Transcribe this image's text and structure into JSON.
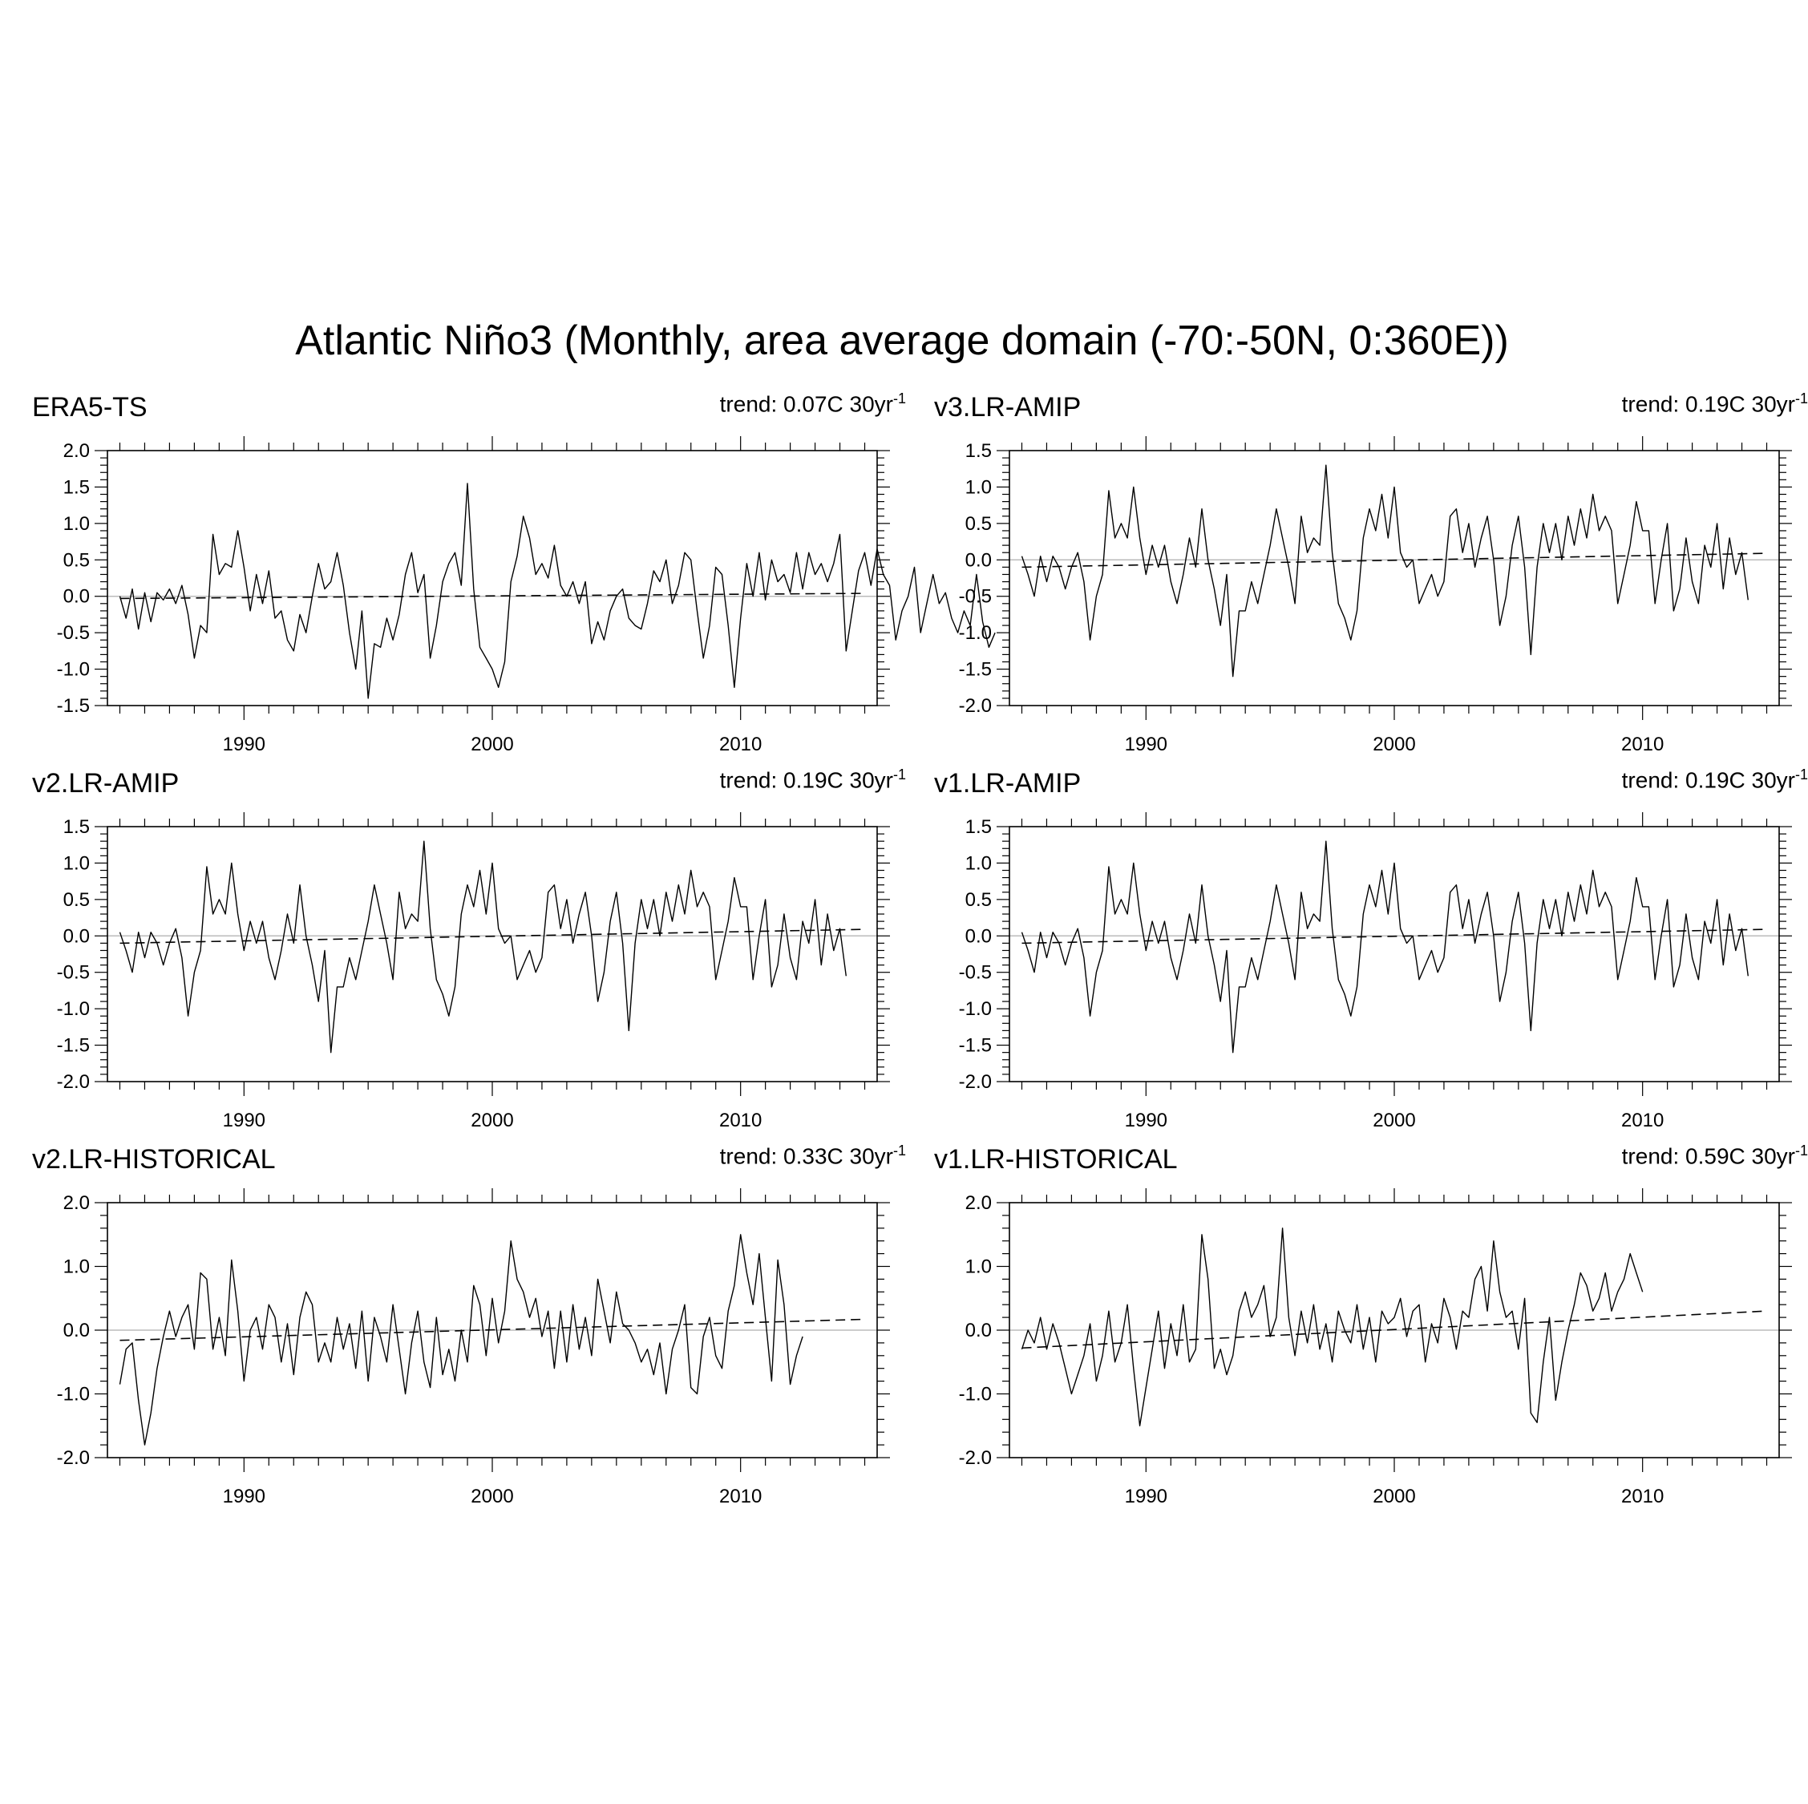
{
  "title": "Atlantic Niño3 (Monthly, area average domain (-70:-50N, 0:360E))",
  "colors": {
    "series": "#000000",
    "trend": "#000000",
    "zero": "#bbbbbb"
  },
  "chart_data": [
    {
      "type": "line",
      "title": "ERA5-TS",
      "trend_label": "trend: 0.07C 30yr",
      "trend_exp": "-1",
      "xlim": [
        1984.5,
        2015.5
      ],
      "ylim": [
        -1.5,
        2.0
      ],
      "ytick_values": [
        2.0,
        1.5,
        1.0,
        0.5,
        0.0,
        -0.5,
        -1.0,
        -1.5
      ],
      "ytick_labels": [
        "2.0",
        "1.5",
        "1.0",
        "0.5",
        "0.0",
        "-0.5",
        "-1.0",
        "-1.5"
      ],
      "xtick_values": [
        1990,
        2000,
        2010
      ],
      "xtick_labels": [
        "1990",
        "2000",
        "2010"
      ],
      "trend_line": [
        [
          1985.0,
          -0.03
        ],
        [
          2015.0,
          0.04
        ]
      ],
      "series": [
        {
          "name": "ERA5-TS",
          "start": 1985.0,
          "step": 0.25,
          "values": [
            0.0,
            -0.3,
            0.1,
            -0.45,
            0.05,
            -0.35,
            0.05,
            -0.05,
            0.1,
            -0.1,
            0.15,
            -0.25,
            -0.85,
            -0.4,
            -0.5,
            0.85,
            0.3,
            0.45,
            0.4,
            0.9,
            0.4,
            -0.2,
            0.3,
            -0.1,
            0.35,
            -0.3,
            -0.2,
            -0.6,
            -0.75,
            -0.25,
            -0.5,
            0.0,
            0.45,
            0.1,
            0.2,
            0.6,
            0.15,
            -0.5,
            -1.0,
            -0.2,
            -1.4,
            -0.65,
            -0.7,
            -0.3,
            -0.6,
            -0.25,
            0.3,
            0.6,
            0.05,
            0.3,
            -0.85,
            -0.4,
            0.2,
            0.45,
            0.6,
            0.15,
            1.55,
            0.1,
            -0.7,
            -0.85,
            -1.0,
            -1.25,
            -0.9,
            0.2,
            0.55,
            1.1,
            0.8,
            0.3,
            0.45,
            0.25,
            0.7,
            0.15,
            0.0,
            0.2,
            -0.1,
            0.2,
            -0.65,
            -0.35,
            -0.6,
            -0.2,
            0.0,
            0.1,
            -0.3,
            -0.4,
            -0.45,
            -0.1,
            0.35,
            0.2,
            0.5,
            -0.1,
            0.15,
            0.6,
            0.5,
            -0.2,
            -0.85,
            -0.4,
            0.4,
            0.3,
            -0.4,
            -1.25,
            -0.3,
            0.45,
            0.0,
            0.6,
            -0.05,
            0.5,
            0.2,
            0.3,
            0.05,
            0.6,
            0.1,
            0.6,
            0.3,
            0.45,
            0.2,
            0.45,
            0.85,
            -0.75,
            -0.2,
            0.35,
            0.6,
            0.15,
            0.65,
            0.3,
            0.15,
            -0.6,
            -0.2,
            0.0,
            0.4,
            -0.5,
            -0.1,
            0.3,
            -0.1,
            0.05,
            -0.3,
            -0.5,
            -0.2,
            -0.4,
            0.3,
            -0.35,
            -0.7,
            -0.5
          ]
        }
      ]
    },
    {
      "type": "line",
      "title": "v3.LR-AMIP",
      "trend_label": "trend: 0.19C 30yr",
      "trend_exp": "-1",
      "xlim": [
        1984.5,
        2015.5
      ],
      "ylim": [
        -2.0,
        1.5
      ],
      "ytick_values": [
        1.5,
        1.0,
        0.5,
        0.0,
        -0.5,
        -1.0,
        -1.5,
        -2.0
      ],
      "ytick_labels": [
        "1.5",
        "1.0",
        "0.5",
        "0.0",
        "-0.5",
        "-1.0",
        "-1.5",
        "-2.0"
      ],
      "xtick_values": [
        1990,
        2000,
        2010
      ],
      "xtick_labels": [
        "1990",
        "2000",
        "2010"
      ],
      "trend_line": [
        [
          1985.0,
          -0.1
        ],
        [
          2015.0,
          0.09
        ]
      ],
      "series": [
        {
          "name": "v3.LR-AMIP",
          "start": 1985.0,
          "step": 0.25,
          "values": [
            0.05,
            -0.2,
            -0.5,
            0.05,
            -0.3,
            0.05,
            -0.1,
            -0.4,
            -0.1,
            0.1,
            -0.3,
            -1.1,
            -0.5,
            -0.2,
            0.95,
            0.3,
            0.5,
            0.3,
            1.0,
            0.3,
            -0.2,
            0.2,
            -0.1,
            0.2,
            -0.3,
            -0.6,
            -0.2,
            0.3,
            -0.1,
            0.7,
            0.0,
            -0.4,
            -0.9,
            -0.2,
            -1.6,
            -0.7,
            -0.7,
            -0.3,
            -0.6,
            -0.2,
            0.2,
            0.7,
            0.3,
            -0.1,
            -0.6,
            0.6,
            0.1,
            0.3,
            0.2,
            1.3,
            0.1,
            -0.6,
            -0.8,
            -1.1,
            -0.7,
            0.3,
            0.7,
            0.4,
            0.9,
            0.3,
            1.0,
            0.1,
            -0.1,
            0.0,
            -0.6,
            -0.4,
            -0.2,
            -0.5,
            -0.3,
            0.6,
            0.7,
            0.1,
            0.5,
            -0.1,
            0.3,
            0.6,
            0.0,
            -0.9,
            -0.5,
            0.2,
            0.6,
            -0.1,
            -1.3,
            -0.1,
            0.5,
            0.1,
            0.5,
            0.0,
            0.6,
            0.2,
            0.7,
            0.3,
            0.9,
            0.4,
            0.6,
            0.4,
            -0.6,
            -0.2,
            0.2,
            0.8,
            0.4,
            0.4,
            -0.6,
            0.0,
            0.5,
            -0.7,
            -0.4,
            0.3,
            -0.3,
            -0.6,
            0.2,
            -0.1,
            0.5,
            -0.4,
            0.3,
            -0.2,
            0.1,
            -0.55
          ]
        }
      ]
    },
    {
      "type": "line",
      "title": "v2.LR-AMIP",
      "trend_label": "trend: 0.19C 30yr",
      "trend_exp": "-1",
      "xlim": [
        1984.5,
        2015.5
      ],
      "ylim": [
        -2.0,
        1.5
      ],
      "ytick_values": [
        1.5,
        1.0,
        0.5,
        0.0,
        -0.5,
        -1.0,
        -1.5,
        -2.0
      ],
      "ytick_labels": [
        "1.5",
        "1.0",
        "0.5",
        "0.0",
        "-0.5",
        "-1.0",
        "-1.5",
        "-2.0"
      ],
      "xtick_values": [
        1990,
        2000,
        2010
      ],
      "xtick_labels": [
        "1990",
        "2000",
        "2010"
      ],
      "trend_line": [
        [
          1985.0,
          -0.1
        ],
        [
          2015.0,
          0.09
        ]
      ],
      "series": [
        {
          "name": "v2.LR-AMIP",
          "start": 1985.0,
          "step": 0.25,
          "values": [
            0.05,
            -0.2,
            -0.5,
            0.05,
            -0.3,
            0.05,
            -0.1,
            -0.4,
            -0.1,
            0.1,
            -0.3,
            -1.1,
            -0.5,
            -0.2,
            0.95,
            0.3,
            0.5,
            0.3,
            1.0,
            0.3,
            -0.2,
            0.2,
            -0.1,
            0.2,
            -0.3,
            -0.6,
            -0.2,
            0.3,
            -0.1,
            0.7,
            0.0,
            -0.4,
            -0.9,
            -0.2,
            -1.6,
            -0.7,
            -0.7,
            -0.3,
            -0.6,
            -0.2,
            0.2,
            0.7,
            0.3,
            -0.1,
            -0.6,
            0.6,
            0.1,
            0.3,
            0.2,
            1.3,
            0.1,
            -0.6,
            -0.8,
            -1.1,
            -0.7,
            0.3,
            0.7,
            0.4,
            0.9,
            0.3,
            1.0,
            0.1,
            -0.1,
            0.0,
            -0.6,
            -0.4,
            -0.2,
            -0.5,
            -0.3,
            0.6,
            0.7,
            0.1,
            0.5,
            -0.1,
            0.3,
            0.6,
            0.0,
            -0.9,
            -0.5,
            0.2,
            0.6,
            -0.1,
            -1.3,
            -0.1,
            0.5,
            0.1,
            0.5,
            0.0,
            0.6,
            0.2,
            0.7,
            0.3,
            0.9,
            0.4,
            0.6,
            0.4,
            -0.6,
            -0.2,
            0.2,
            0.8,
            0.4,
            0.4,
            -0.6,
            0.0,
            0.5,
            -0.7,
            -0.4,
            0.3,
            -0.3,
            -0.6,
            0.2,
            -0.1,
            0.5,
            -0.4,
            0.3,
            -0.2,
            0.1,
            -0.55
          ]
        }
      ]
    },
    {
      "type": "line",
      "title": "v1.LR-AMIP",
      "trend_label": "trend: 0.19C 30yr",
      "trend_exp": "-1",
      "xlim": [
        1984.5,
        2015.5
      ],
      "ylim": [
        -2.0,
        1.5
      ],
      "ytick_values": [
        1.5,
        1.0,
        0.5,
        0.0,
        -0.5,
        -1.0,
        -1.5,
        -2.0
      ],
      "ytick_labels": [
        "1.5",
        "1.0",
        "0.5",
        "0.0",
        "-0.5",
        "-1.0",
        "-1.5",
        "-2.0"
      ],
      "xtick_values": [
        1990,
        2000,
        2010
      ],
      "xtick_labels": [
        "1990",
        "2000",
        "2010"
      ],
      "trend_line": [
        [
          1985.0,
          -0.1
        ],
        [
          2015.0,
          0.09
        ]
      ],
      "series": [
        {
          "name": "v1.LR-AMIP",
          "start": 1985.0,
          "step": 0.25,
          "values": [
            0.05,
            -0.2,
            -0.5,
            0.05,
            -0.3,
            0.05,
            -0.1,
            -0.4,
            -0.1,
            0.1,
            -0.3,
            -1.1,
            -0.5,
            -0.2,
            0.95,
            0.3,
            0.5,
            0.3,
            1.0,
            0.3,
            -0.2,
            0.2,
            -0.1,
            0.2,
            -0.3,
            -0.6,
            -0.2,
            0.3,
            -0.1,
            0.7,
            0.0,
            -0.4,
            -0.9,
            -0.2,
            -1.6,
            -0.7,
            -0.7,
            -0.3,
            -0.6,
            -0.2,
            0.2,
            0.7,
            0.3,
            -0.1,
            -0.6,
            0.6,
            0.1,
            0.3,
            0.2,
            1.3,
            0.1,
            -0.6,
            -0.8,
            -1.1,
            -0.7,
            0.3,
            0.7,
            0.4,
            0.9,
            0.3,
            1.0,
            0.1,
            -0.1,
            0.0,
            -0.6,
            -0.4,
            -0.2,
            -0.5,
            -0.3,
            0.6,
            0.7,
            0.1,
            0.5,
            -0.1,
            0.3,
            0.6,
            0.0,
            -0.9,
            -0.5,
            0.2,
            0.6,
            -0.1,
            -1.3,
            -0.1,
            0.5,
            0.1,
            0.5,
            0.0,
            0.6,
            0.2,
            0.7,
            0.3,
            0.9,
            0.4,
            0.6,
            0.4,
            -0.6,
            -0.2,
            0.2,
            0.8,
            0.4,
            0.4,
            -0.6,
            0.0,
            0.5,
            -0.7,
            -0.4,
            0.3,
            -0.3,
            -0.6,
            0.2,
            -0.1,
            0.5,
            -0.4,
            0.3,
            -0.2,
            0.1,
            -0.55
          ]
        }
      ]
    },
    {
      "type": "line",
      "title": "v2.LR-HISTORICAL",
      "trend_label": "trend: 0.33C 30yr",
      "trend_exp": "-1",
      "xlim": [
        1984.5,
        2015.5
      ],
      "ylim": [
        -2.0,
        2.0
      ],
      "ytick_values": [
        2.0,
        1.0,
        0.0,
        -1.0,
        -2.0
      ],
      "ytick_labels": [
        "2.0",
        "1.0",
        "0.0",
        "-1.0",
        "-2.0"
      ],
      "xtick_values": [
        1990,
        2000,
        2010
      ],
      "xtick_labels": [
        "1990",
        "2000",
        "2010"
      ],
      "trend_line": [
        [
          1985.0,
          -0.16
        ],
        [
          2015.0,
          0.17
        ]
      ],
      "series": [
        {
          "name": "v2.LR-HISTORICAL",
          "start": 1985.0,
          "step": 0.25,
          "values": [
            -0.85,
            -0.3,
            -0.2,
            -1.1,
            -1.8,
            -1.3,
            -0.6,
            -0.1,
            0.3,
            -0.1,
            0.2,
            0.4,
            -0.3,
            0.9,
            0.8,
            -0.3,
            0.2,
            -0.4,
            1.1,
            0.3,
            -0.8,
            0.0,
            0.2,
            -0.3,
            0.4,
            0.2,
            -0.5,
            0.1,
            -0.7,
            0.2,
            0.6,
            0.4,
            -0.5,
            -0.2,
            -0.5,
            0.2,
            -0.3,
            0.1,
            -0.6,
            0.3,
            -0.8,
            0.2,
            -0.1,
            -0.5,
            0.4,
            -0.3,
            -1.0,
            -0.2,
            0.3,
            -0.5,
            -0.9,
            0.2,
            -0.7,
            -0.3,
            -0.8,
            0.0,
            -0.5,
            0.7,
            0.4,
            -0.4,
            0.5,
            -0.2,
            0.3,
            1.4,
            0.8,
            0.6,
            0.2,
            0.5,
            -0.1,
            0.3,
            -0.6,
            0.3,
            -0.5,
            0.4,
            -0.3,
            0.2,
            -0.4,
            0.8,
            0.3,
            -0.2,
            0.6,
            0.1,
            0.0,
            -0.2,
            -0.5,
            -0.3,
            -0.7,
            -0.2,
            -1.0,
            -0.3,
            0.0,
            0.4,
            -0.9,
            -1.0,
            -0.1,
            0.2,
            -0.4,
            -0.6,
            0.3,
            0.7,
            1.5,
            0.9,
            0.4,
            1.2,
            0.2,
            -0.8,
            1.1,
            0.4,
            -0.85,
            -0.4,
            -0.1
          ]
        }
      ]
    },
    {
      "type": "line",
      "title": "v1.LR-HISTORICAL",
      "trend_label": "trend: 0.59C 30yr",
      "trend_exp": "-1",
      "xlim": [
        1984.5,
        2015.5
      ],
      "ylim": [
        -2.0,
        2.0
      ],
      "ytick_values": [
        2.0,
        1.0,
        0.0,
        -1.0,
        -2.0
      ],
      "ytick_labels": [
        "2.0",
        "1.0",
        "0.0",
        "-1.0",
        "-2.0"
      ],
      "xtick_values": [
        1990,
        2000,
        2010
      ],
      "xtick_labels": [
        "1990",
        "2000",
        "2010"
      ],
      "trend_line": [
        [
          1985.0,
          -0.28
        ],
        [
          2015.0,
          0.3
        ]
      ],
      "series": [
        {
          "name": "v1.LR-HISTORICAL",
          "start": 1985.0,
          "step": 0.25,
          "values": [
            -0.3,
            0.0,
            -0.2,
            0.2,
            -0.3,
            0.1,
            -0.2,
            -0.6,
            -1.0,
            -0.7,
            -0.4,
            0.1,
            -0.8,
            -0.4,
            0.3,
            -0.5,
            -0.2,
            0.4,
            -0.6,
            -1.5,
            -0.9,
            -0.3,
            0.3,
            -0.6,
            0.1,
            -0.4,
            0.4,
            -0.5,
            -0.3,
            1.5,
            0.8,
            -0.6,
            -0.3,
            -0.7,
            -0.4,
            0.3,
            0.6,
            0.2,
            0.4,
            0.7,
            -0.1,
            0.2,
            1.6,
            0.2,
            -0.4,
            0.3,
            -0.2,
            0.4,
            -0.3,
            0.1,
            -0.5,
            0.3,
            0.0,
            -0.2,
            0.4,
            -0.3,
            0.2,
            -0.5,
            0.3,
            0.1,
            0.2,
            0.5,
            -0.1,
            0.3,
            0.4,
            -0.5,
            0.1,
            -0.2,
            0.5,
            0.2,
            -0.3,
            0.3,
            0.2,
            0.8,
            1.0,
            0.3,
            1.4,
            0.6,
            0.2,
            0.3,
            -0.3,
            0.5,
            -1.3,
            -1.45,
            -0.5,
            0.2,
            -1.1,
            -0.5,
            0.0,
            0.4,
            0.9,
            0.7,
            0.3,
            0.5,
            0.9,
            0.3,
            0.6,
            0.8,
            1.2,
            0.9,
            0.6
          ]
        }
      ]
    }
  ]
}
